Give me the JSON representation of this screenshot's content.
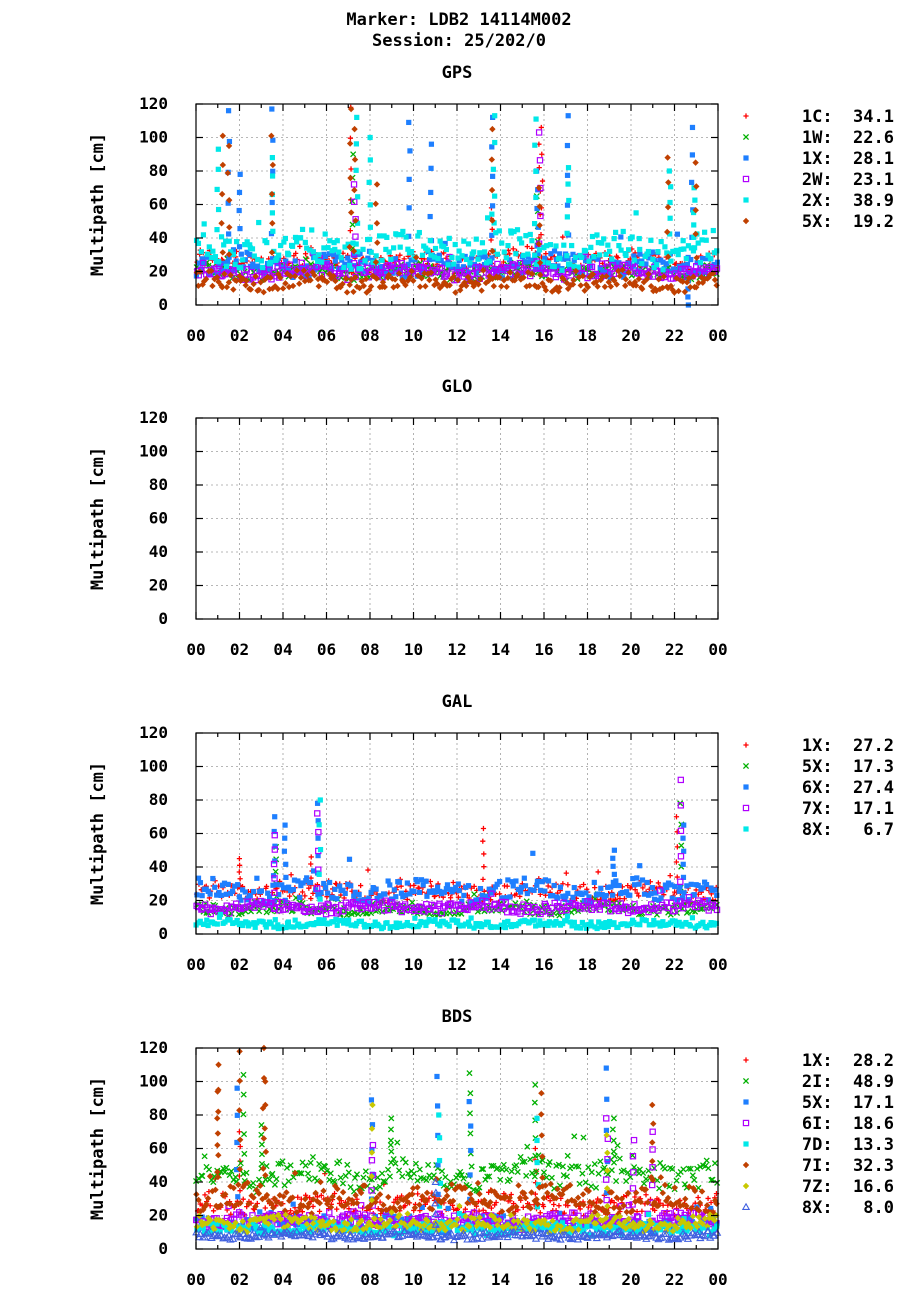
{
  "header": {
    "line1": "Marker: LDB2 14114M002",
    "line2": "Session: 25/202/0"
  },
  "chart_data": [
    {
      "type": "scatter",
      "title": "GPS",
      "ylabel": "Multipath [cm]",
      "ylim": [
        0,
        120
      ],
      "yticks": [
        "0",
        "20",
        "40",
        "60",
        "80",
        "100",
        "120"
      ],
      "xlim": [
        0,
        24
      ],
      "xticks": [
        "00",
        "02",
        "04",
        "06",
        "08",
        "10",
        "12",
        "14",
        "16",
        "18",
        "20",
        "22",
        "00"
      ],
      "grid": true,
      "legend_position": "right",
      "series": [
        {
          "name": "1C",
          "value": "34.1",
          "color": "#ff0000",
          "marker": "plus",
          "base": 26,
          "spread": 6,
          "spikes": [
            [
              7.1,
              118
            ],
            [
              13.6,
              58
            ],
            [
              15.8,
              96
            ],
            [
              15.9,
              106
            ]
          ]
        },
        {
          "name": "1W",
          "value": "22.6",
          "color": "#00b000",
          "marker": "cross",
          "base": 20,
          "spread": 4,
          "spikes": [
            [
              7.2,
              90
            ],
            [
              15.7,
              65
            ]
          ]
        },
        {
          "name": "1X",
          "value": "28.1",
          "color": "#1e7fff",
          "marker": "square",
          "base": 24,
          "spread": 6,
          "spikes": [
            [
              1.5,
              116
            ],
            [
              3.5,
              117
            ],
            [
              9.8,
              109
            ],
            [
              10.8,
              96
            ],
            [
              13.6,
              112
            ],
            [
              15.7,
              80
            ],
            [
              17.1,
              113
            ],
            [
              22.8,
              106
            ],
            [
              22.6,
              0
            ],
            [
              2.0,
              78
            ]
          ]
        },
        {
          "name": "2W",
          "value": "23.1",
          "color": "#b000ff",
          "marker": "opensquare",
          "base": 20,
          "spread": 4,
          "spikes": [
            [
              15.8,
              103
            ],
            [
              7.3,
              72
            ]
          ]
        },
        {
          "name": "2X",
          "value": "38.9",
          "color": "#00e8e8",
          "marker": "square",
          "base": 33,
          "spread": 9,
          "spikes": [
            [
              1.0,
              93
            ],
            [
              3.5,
              88
            ],
            [
              7.4,
              112
            ],
            [
              8.0,
              100
            ],
            [
              13.7,
              113
            ],
            [
              15.6,
              111
            ],
            [
              17.1,
              82
            ],
            [
              21.8,
              80
            ],
            [
              22.9,
              70
            ]
          ]
        },
        {
          "name": "5X",
          "value": "19.2",
          "color": "#c04000",
          "marker": "diamond",
          "base": 14,
          "spread": 5,
          "spikes": [
            [
              1.2,
              101
            ],
            [
              1.5,
              95
            ],
            [
              3.5,
              101
            ],
            [
              7.1,
              117
            ],
            [
              7.3,
              105
            ],
            [
              8.3,
              72
            ],
            [
              13.6,
              105
            ],
            [
              15.8,
              70
            ],
            [
              21.7,
              88
            ],
            [
              23.0,
              85
            ]
          ]
        }
      ]
    },
    {
      "type": "scatter",
      "title": "GLO",
      "ylabel": "Multipath [cm]",
      "ylim": [
        0,
        120
      ],
      "yticks": [
        "0",
        "20",
        "40",
        "60",
        "80",
        "100",
        "120"
      ],
      "xlim": [
        0,
        24
      ],
      "xticks": [
        "00",
        "02",
        "04",
        "06",
        "08",
        "10",
        "12",
        "14",
        "16",
        "18",
        "20",
        "22",
        "00"
      ],
      "grid": true,
      "legend_position": "right",
      "series": []
    },
    {
      "type": "scatter",
      "title": "GAL",
      "ylabel": "Multipath [cm]",
      "ylim": [
        0,
        120
      ],
      "yticks": [
        "0",
        "20",
        "40",
        "60",
        "80",
        "100",
        "120"
      ],
      "xlim": [
        0,
        24
      ],
      "xticks": [
        "00",
        "02",
        "04",
        "06",
        "08",
        "10",
        "12",
        "14",
        "16",
        "18",
        "20",
        "22",
        "00"
      ],
      "grid": true,
      "legend_position": "right",
      "series": [
        {
          "name": "1X",
          "value": "27.2",
          "color": "#ff0000",
          "marker": "plus",
          "base": 25,
          "spread": 5,
          "spikes": [
            [
              2.0,
              45
            ],
            [
              5.3,
              46
            ],
            [
              13.2,
              63
            ],
            [
              22.1,
              70
            ]
          ]
        },
        {
          "name": "5X",
          "value": "17.3",
          "color": "#00b000",
          "marker": "cross",
          "base": 15,
          "spread": 3,
          "spikes": [
            [
              3.7,
              52
            ],
            [
              22.3,
              78
            ]
          ]
        },
        {
          "name": "6X",
          "value": "27.4",
          "color": "#1e7fff",
          "marker": "square",
          "base": 26,
          "spread": 6,
          "spikes": [
            [
              3.6,
              70
            ],
            [
              4.1,
              65
            ],
            [
              5.6,
              78
            ],
            [
              19.2,
              50
            ],
            [
              22.4,
              65
            ]
          ]
        },
        {
          "name": "7X",
          "value": "17.1",
          "color": "#b000ff",
          "marker": "opensquare",
          "base": 16,
          "spread": 3,
          "spikes": [
            [
              3.6,
              59
            ],
            [
              5.6,
              72
            ],
            [
              22.3,
              92
            ]
          ]
        },
        {
          "name": "8X",
          "value": "6.7",
          "color": "#00e8e8",
          "marker": "square",
          "base": 6,
          "spread": 2,
          "spikes": [
            [
              5.7,
              80
            ]
          ]
        }
      ]
    },
    {
      "type": "scatter",
      "title": "BDS",
      "ylabel": "Multipath [cm]",
      "ylim": [
        0,
        120
      ],
      "yticks": [
        "0",
        "20",
        "40",
        "60",
        "80",
        "100",
        "120"
      ],
      "xlim": [
        0,
        24
      ],
      "xticks": [
        "00",
        "02",
        "04",
        "06",
        "08",
        "10",
        "12",
        "14",
        "16",
        "18",
        "20",
        "22",
        "00"
      ],
      "grid": true,
      "legend_position": "right",
      "series": [
        {
          "name": "1X",
          "value": "28.2",
          "color": "#ff0000",
          "marker": "plus",
          "base": 26,
          "spread": 6,
          "spikes": [
            [
              2.0,
              70
            ],
            [
              15.6,
              60
            ]
          ]
        },
        {
          "name": "2I",
          "value": "48.9",
          "color": "#00b000",
          "marker": "cross",
          "base": 45,
          "spread": 8,
          "spikes": [
            [
              2.2,
              104
            ],
            [
              3.0,
              74
            ],
            [
              12.6,
              105
            ],
            [
              15.6,
              98
            ],
            [
              9.0,
              78
            ],
            [
              19.2,
              78
            ]
          ]
        },
        {
          "name": "5X",
          "value": "17.1",
          "color": "#1e7fff",
          "marker": "square",
          "base": 15,
          "spread": 4,
          "spikes": [
            [
              1.9,
              96
            ],
            [
              11.1,
              103
            ],
            [
              12.6,
              88
            ],
            [
              18.9,
              108
            ],
            [
              8.1,
              89
            ]
          ]
        },
        {
          "name": "6I",
          "value": "18.6",
          "color": "#b000ff",
          "marker": "opensquare",
          "base": 17,
          "spread": 4,
          "spikes": [
            [
              8.1,
              62
            ],
            [
              18.9,
              78
            ],
            [
              20.1,
              65
            ],
            [
              21.0,
              70
            ]
          ]
        },
        {
          "name": "7D",
          "value": "13.3",
          "color": "#00e8e8",
          "marker": "square",
          "base": 12,
          "spread": 3,
          "spikes": [
            [
              11.2,
              80
            ],
            [
              15.7,
              78
            ]
          ]
        },
        {
          "name": "7I",
          "value": "32.3",
          "color": "#c04000",
          "marker": "diamond",
          "base": 30,
          "spread": 7,
          "spikes": [
            [
              1.0,
              110
            ],
            [
              2.0,
              118
            ],
            [
              3.1,
              120
            ],
            [
              1.0,
              95
            ],
            [
              15.9,
              93
            ],
            [
              21.0,
              86
            ],
            [
              3.2,
              100
            ]
          ]
        },
        {
          "name": "7Z",
          "value": "16.6",
          "color": "#c8c800",
          "marker": "diamond",
          "base": 15,
          "spread": 4,
          "spikes": [
            [
              8.1,
              86
            ],
            [
              18.9,
              68
            ]
          ]
        },
        {
          "name": "8X",
          "value": "8.0",
          "color": "#4060e0",
          "marker": "triangle",
          "base": 8,
          "spread": 2,
          "spikes": [
            [
              11.0,
              40
            ]
          ]
        }
      ]
    }
  ]
}
